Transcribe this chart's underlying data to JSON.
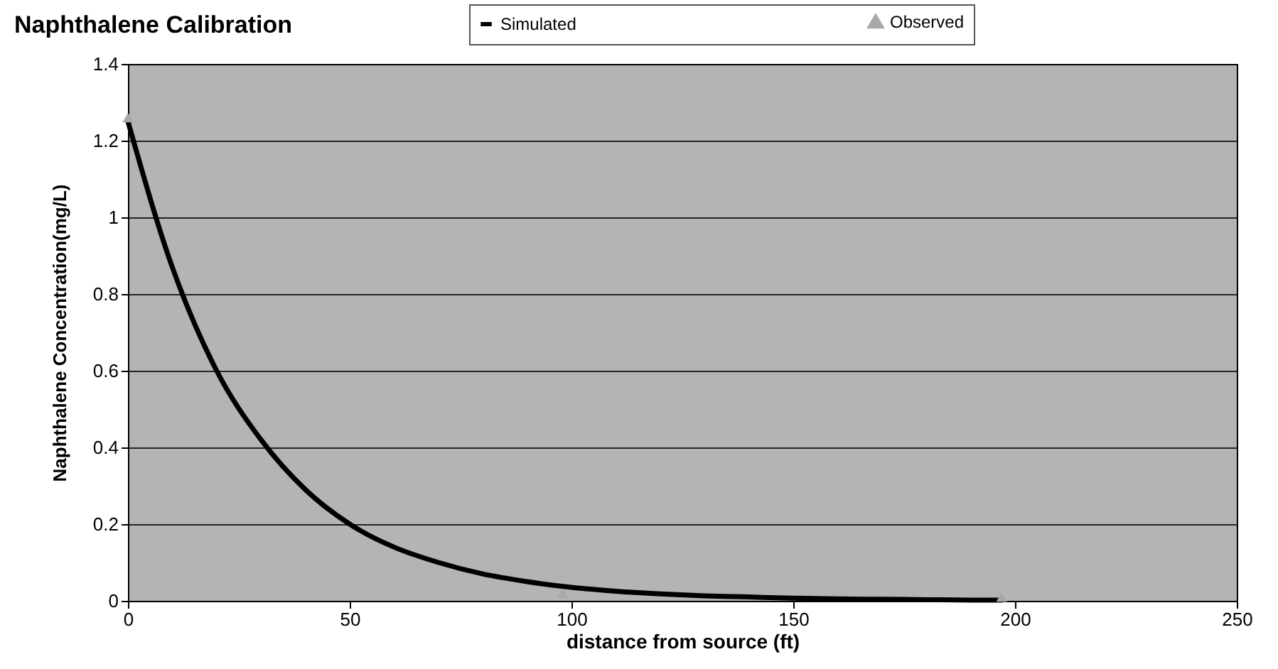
{
  "chart_data": {
    "type": "line",
    "title": "Naphthalene Calibration",
    "xlabel": "distance from source (ft)",
    "ylabel": "Naphthalene Concentration(mg/L)",
    "series": [
      {
        "name": "Simulated",
        "color": "#000000",
        "marker": "none",
        "x": [
          0,
          10,
          20,
          30,
          40,
          50,
          60,
          70,
          80,
          90,
          100,
          110,
          120,
          130,
          140,
          150,
          160,
          170,
          180,
          190,
          197
        ],
        "values": [
          1.25,
          0.87,
          0.6,
          0.42,
          0.29,
          0.2,
          0.14,
          0.1,
          0.07,
          0.05,
          0.035,
          0.025,
          0.018,
          0.013,
          0.01,
          0.007,
          0.005,
          0.004,
          0.003,
          0.002,
          0.002
        ]
      },
      {
        "name": "Observed",
        "type": "scatter",
        "color": "#a8a8a8",
        "marker": "triangle",
        "x": [
          0,
          98,
          197
        ],
        "values": [
          1.26,
          0.02,
          0.01
        ]
      }
    ],
    "xlim": [
      0,
      250
    ],
    "xticks": [
      0,
      50,
      100,
      150,
      200,
      250
    ],
    "ylim": [
      0,
      1.4
    ],
    "yticks": [
      0,
      0.2,
      0.4,
      0.6,
      0.8,
      1,
      1.2,
      1.4
    ],
    "grid": "y",
    "legend": "top right"
  }
}
